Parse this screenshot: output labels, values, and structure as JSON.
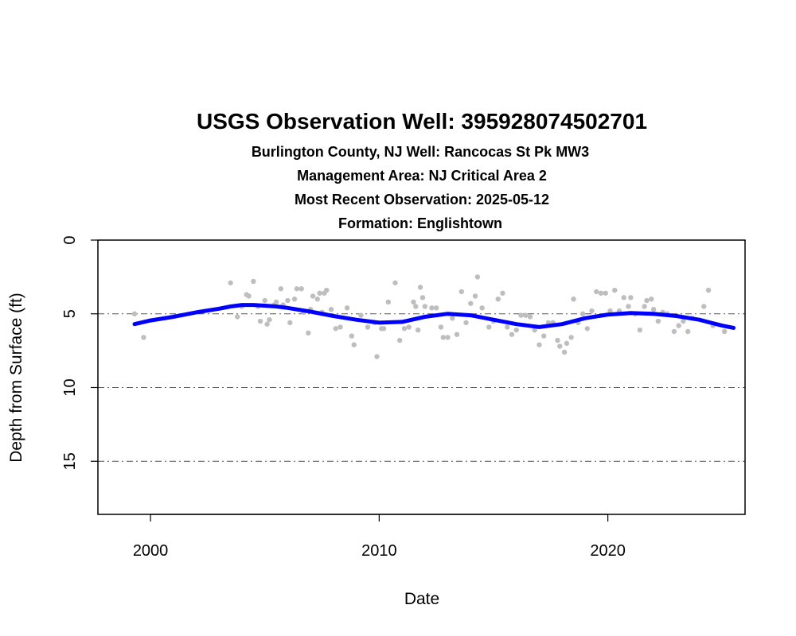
{
  "chart_data": {
    "type": "scatter",
    "title": "USGS Observation Well:  395928074502701",
    "subtitles": [
      "Burlington County, NJ    Well: Rancocas St Pk MW3",
      "Management Area: NJ Critical Area 2",
      "Most Recent Observation: 2025-05-12",
      "Formation: Englishtown"
    ],
    "xlabel": "Date",
    "ylabel": "Depth from Surface (ft)",
    "xlim": [
      1997.7,
      2026.0
    ],
    "ylim": [
      0,
      18.6
    ],
    "y_reversed": true,
    "x_ticks": [
      2000,
      2010,
      2020
    ],
    "y_ticks": [
      0,
      5,
      10,
      15
    ],
    "reference_lines": [
      0,
      5,
      10,
      15
    ],
    "grid": false,
    "colors": {
      "points": "#bebebe",
      "trend": "#0000ff",
      "reference": "#555555"
    },
    "series": [
      {
        "kind": "points",
        "x": [
          1999.3,
          1999.7,
          2003.5,
          2003.8,
          2004.0,
          2004.2,
          2004.3,
          2004.5,
          2004.7,
          2004.8,
          2005.0,
          2005.1,
          2005.2,
          2005.4,
          2005.5,
          2005.7,
          2005.8,
          2006.0,
          2006.1,
          2006.3,
          2006.4,
          2006.6,
          2006.7,
          2006.9,
          2007.0,
          2007.1,
          2007.3,
          2007.4,
          2007.5,
          2007.6,
          2007.7,
          2007.9,
          2008.1,
          2008.3,
          2008.6,
          2008.8,
          2008.9,
          2009.2,
          2009.5,
          2009.8,
          2009.9,
          2010.1,
          2010.2,
          2010.4,
          2010.7,
          2010.9,
          2011.1,
          2011.3,
          2011.5,
          2011.6,
          2011.7,
          2011.8,
          2011.9,
          2012.0,
          2012.3,
          2012.5,
          2012.7,
          2012.8,
          2013.0,
          2013.2,
          2013.4,
          2013.6,
          2013.8,
          2014.0,
          2014.2,
          2014.3,
          2014.5,
          2014.8,
          2015.0,
          2015.2,
          2015.4,
          2015.6,
          2015.8,
          2016.0,
          2016.2,
          2016.4,
          2016.6,
          2016.8,
          2017.0,
          2017.2,
          2017.4,
          2017.6,
          2017.8,
          2017.9,
          2018.1,
          2018.2,
          2018.4,
          2018.5,
          2018.7,
          2018.9,
          2019.1,
          2019.3,
          2019.5,
          2019.7,
          2019.9,
          2020.1,
          2020.3,
          2020.5,
          2020.7,
          2020.9,
          2021.0,
          2021.2,
          2021.4,
          2021.6,
          2021.7,
          2021.9,
          2022.0,
          2022.2,
          2022.4,
          2022.6,
          2022.9,
          2023.1,
          2023.3,
          2023.5,
          2023.7,
          2024.2,
          2024.4,
          2024.6,
          2025.1
        ],
        "y": [
          5.0,
          6.6,
          2.9,
          5.2,
          4.5,
          3.7,
          3.8,
          2.8,
          4.5,
          5.5,
          4.1,
          5.7,
          5.4,
          4.4,
          4.2,
          3.3,
          4.4,
          4.1,
          5.6,
          4.0,
          3.3,
          3.3,
          4.9,
          6.3,
          4.7,
          3.8,
          4.0,
          3.6,
          4.9,
          3.6,
          3.4,
          4.7,
          6.0,
          5.9,
          4.6,
          6.5,
          7.1,
          5.1,
          5.9,
          5.6,
          7.9,
          6.0,
          6.0,
          4.2,
          2.9,
          6.8,
          6.0,
          5.9,
          4.2,
          4.5,
          6.1,
          3.2,
          3.9,
          4.5,
          4.6,
          4.6,
          5.9,
          6.6,
          6.6,
          5.3,
          6.4,
          3.5,
          5.6,
          4.3,
          3.8,
          2.5,
          4.6,
          5.9,
          5.5,
          4.0,
          3.6,
          5.9,
          6.4,
          6.1,
          5.1,
          5.1,
          5.2,
          6.1,
          7.1,
          6.5,
          5.6,
          5.6,
          6.8,
          7.2,
          7.6,
          7.0,
          6.6,
          4.0,
          5.6,
          5.0,
          6.0,
          4.8,
          3.5,
          3.6,
          3.6,
          4.8,
          3.4,
          4.8,
          3.9,
          4.5,
          3.9,
          5.0,
          6.1,
          4.5,
          4.1,
          4.0,
          4.7,
          5.5,
          4.9,
          5.0,
          6.2,
          5.8,
          5.5,
          6.2,
          5.3,
          4.5,
          3.4,
          5.8,
          6.2
        ]
      },
      {
        "kind": "trend",
        "x": [
          1999.3,
          2000.0,
          2001.0,
          2002.0,
          2003.0,
          2003.5,
          2004.0,
          2004.5,
          2005.0,
          2005.5,
          2006.0,
          2007.0,
          2008.0,
          2009.0,
          2010.0,
          2011.0,
          2012.0,
          2013.0,
          2014.0,
          2015.0,
          2016.0,
          2017.0,
          2018.0,
          2019.0,
          2020.0,
          2021.0,
          2022.0,
          2023.0,
          2024.0,
          2025.0,
          2025.5
        ],
        "y": [
          5.7,
          5.45,
          5.2,
          4.9,
          4.65,
          4.5,
          4.4,
          4.4,
          4.45,
          4.5,
          4.6,
          4.85,
          5.15,
          5.4,
          5.6,
          5.55,
          5.2,
          5.0,
          5.1,
          5.4,
          5.7,
          5.9,
          5.7,
          5.3,
          5.05,
          4.95,
          5.0,
          5.15,
          5.4,
          5.8,
          5.95
        ]
      }
    ]
  }
}
